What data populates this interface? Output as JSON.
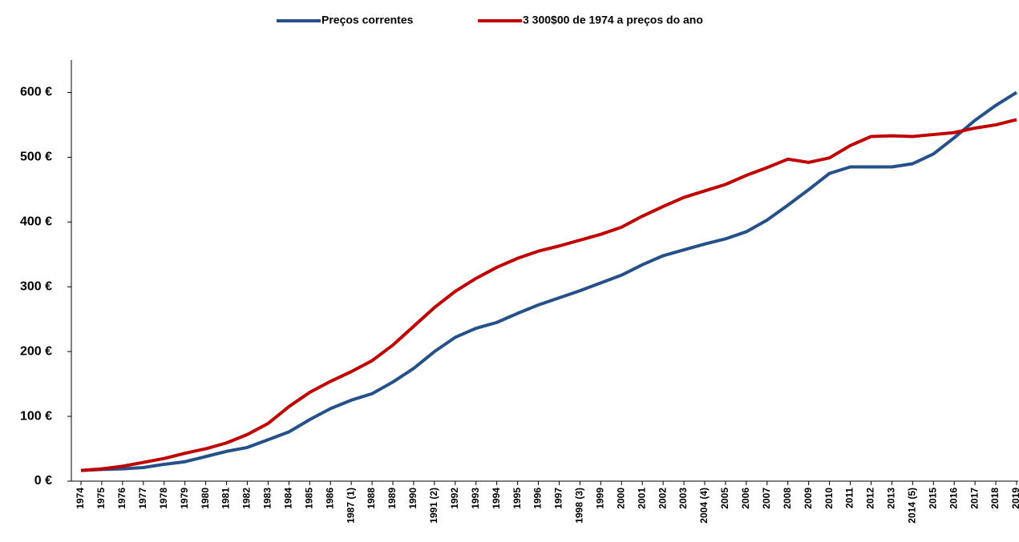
{
  "chart_data": {
    "type": "line",
    "categories": [
      "1974",
      "1975",
      "1976",
      "1977",
      "1978",
      "1979",
      "1980",
      "1981",
      "1982",
      "1983",
      "1984",
      "1985",
      "1986",
      "1987 (1)",
      "1988",
      "1989",
      "1990",
      "1991 (2)",
      "1992",
      "1993",
      "1994",
      "1995",
      "1996",
      "1997",
      "1998 (3)",
      "1999",
      "2000",
      "2001",
      "2002",
      "2003",
      "2004 (4)",
      "2005",
      "2006",
      "2007",
      "2008",
      "2009",
      "2010",
      "2011",
      "2012",
      "2013",
      "2014 (5)",
      "2015",
      "2016",
      "2017",
      "2018",
      "2019"
    ],
    "series": [
      {
        "name": "Preços correntes",
        "color": "#25508a",
        "values": [
          16.5,
          18,
          19,
          21,
          26,
          30,
          38,
          46,
          52,
          64,
          76,
          95,
          112,
          125,
          135,
          153,
          174,
          200,
          222,
          236,
          245,
          259,
          272,
          283,
          294,
          306,
          318,
          334,
          348,
          357,
          366,
          374,
          385,
          403,
          426,
          450,
          475,
          485,
          485,
          485,
          490,
          505,
          530,
          557,
          580,
          600
        ]
      },
      {
        "name": "3 300$00 de 1974 a preços do ano",
        "color": "#c00000",
        "values": [
          16.5,
          19,
          23,
          29,
          35,
          43,
          50,
          59,
          72,
          89,
          115,
          137,
          154,
          169,
          186,
          210,
          239,
          268,
          293,
          313,
          330,
          344,
          355,
          363,
          372,
          381,
          392,
          409,
          424,
          438,
          448,
          458,
          472,
          484,
          497,
          492,
          499,
          518,
          532,
          533,
          532,
          535,
          538,
          545,
          550,
          558
        ]
      }
    ],
    "ylim": [
      0,
      650
    ],
    "yticks": [
      {
        "value": 0,
        "label": "0 €"
      },
      {
        "value": 100,
        "label": "100 €"
      },
      {
        "value": 200,
        "label": "200 €"
      },
      {
        "value": 300,
        "label": "300 €"
      },
      {
        "value": 400,
        "label": "400 €"
      },
      {
        "value": 500,
        "label": "500 €"
      },
      {
        "value": 600,
        "label": "600 €"
      }
    ],
    "legend": "top"
  }
}
